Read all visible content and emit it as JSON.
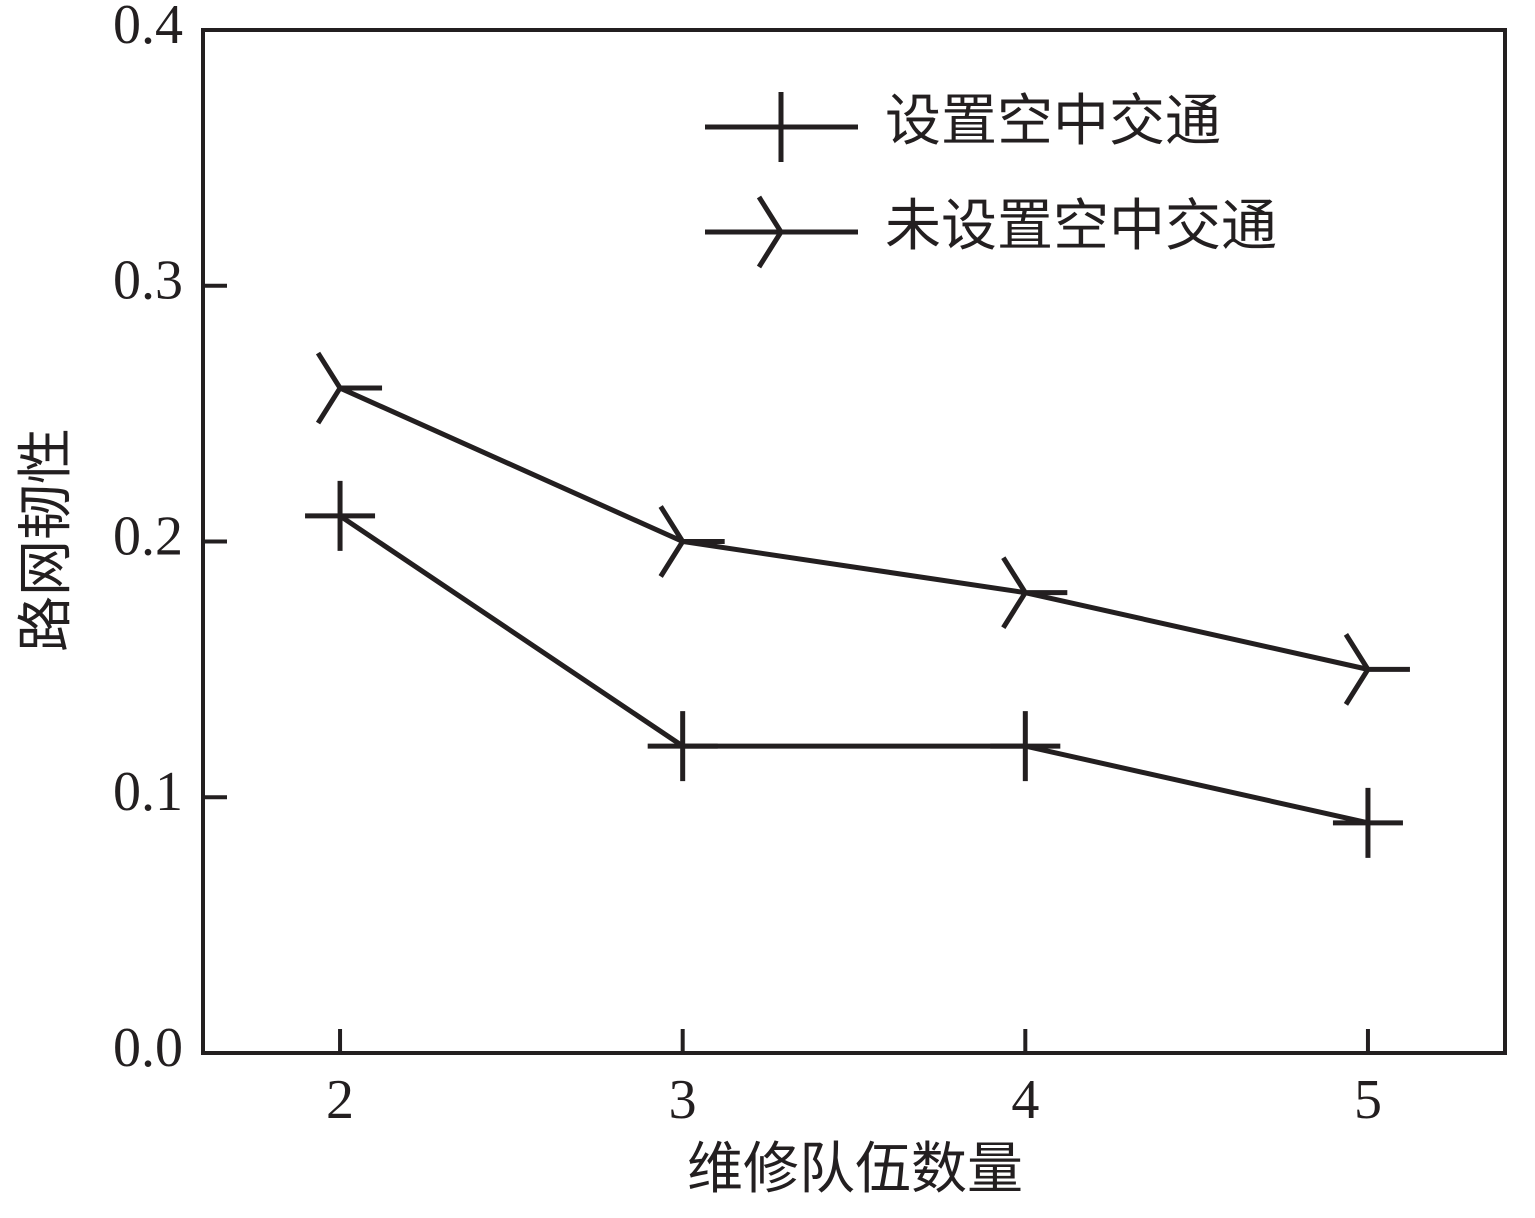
{
  "chart_data": {
    "type": "line",
    "x_label": "维修队伍数量",
    "y_label": "路网韧性",
    "x": [
      2,
      3,
      4,
      5
    ],
    "series": [
      {
        "name": "设置空中交通",
        "color": "#231f20",
        "marker": "plus",
        "values": [
          0.21,
          0.12,
          0.12,
          0.09
        ]
      },
      {
        "name": "未设置空中交通",
        "color": "#231f20",
        "marker": "tri",
        "values": [
          0.26,
          0.2,
          0.18,
          0.15
        ]
      }
    ],
    "xlim": [
      1.6,
      5.4
    ],
    "ylim": [
      0,
      0.4
    ],
    "xticks": [
      2,
      3,
      4,
      5
    ],
    "yticks": [
      {
        "value": 0,
        "label": "0.0"
      },
      0.1,
      0.2,
      0.3,
      0.4
    ],
    "legend": "upper right",
    "grid": false
  }
}
